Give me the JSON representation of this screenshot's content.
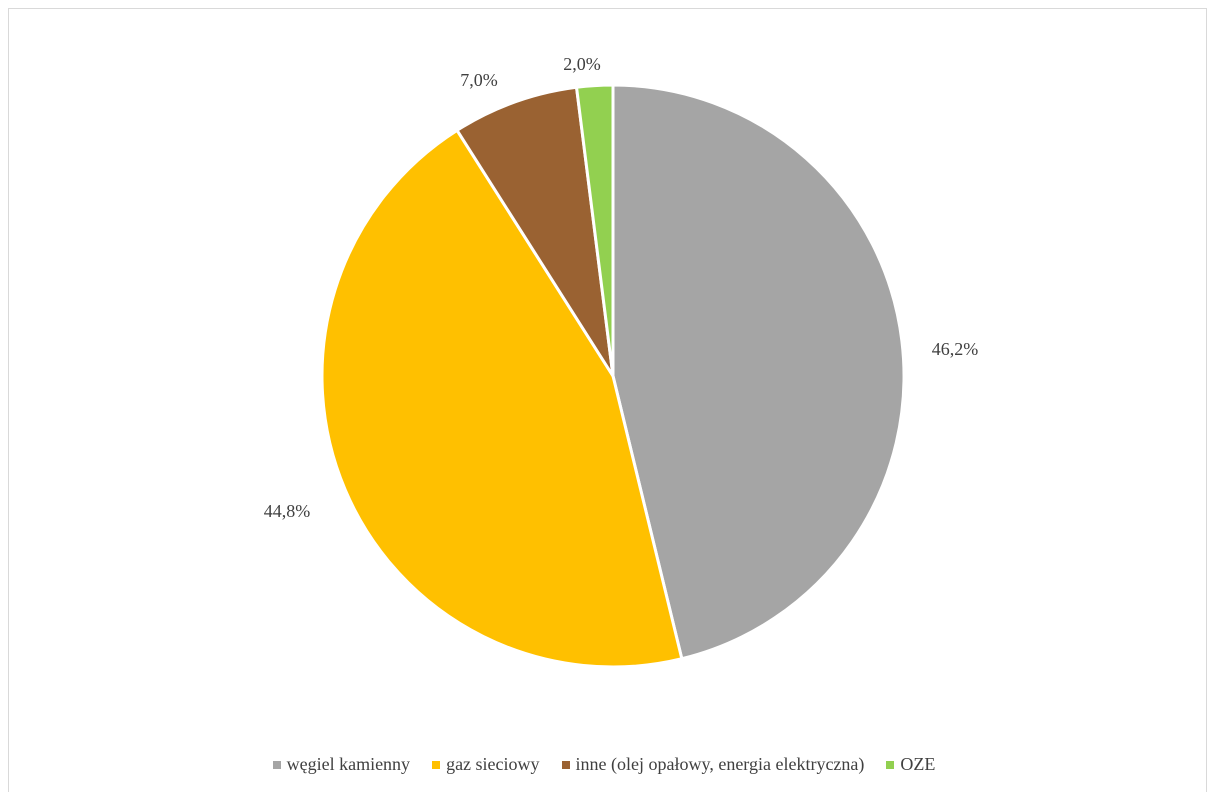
{
  "chart_data": {
    "type": "pie",
    "title": "",
    "start_angle_deg": 0,
    "direction": "clockwise",
    "legend_position": "bottom",
    "slices": [
      {
        "label": "węgiel kamienny",
        "value": 46.2,
        "display": "46,2%",
        "color": "#A5A5A5"
      },
      {
        "label": "gaz sieciowy",
        "value": 44.8,
        "display": "44,8%",
        "color": "#FFC000"
      },
      {
        "label": "inne (olej opałowy, energia elektryczna)",
        "value": 7.0,
        "display": "7,0%",
        "color": "#9A6232"
      },
      {
        "label": "OZE",
        "value": 2.0,
        "display": "2,0%",
        "color": "#92D050"
      }
    ]
  }
}
